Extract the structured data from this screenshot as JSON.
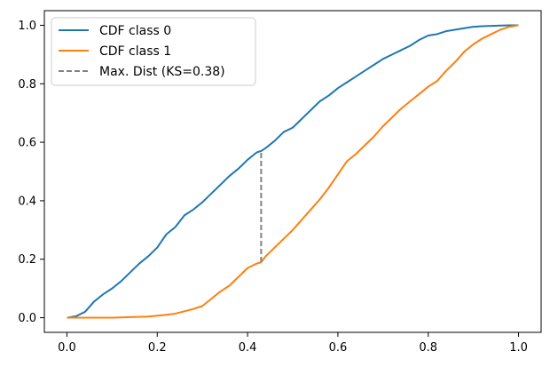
{
  "chart_data": {
    "type": "line",
    "title": "",
    "xlabel": "",
    "ylabel": "",
    "xlim": [
      -0.05,
      1.05
    ],
    "ylim": [
      -0.05,
      1.05
    ],
    "x_ticks": [
      0.0,
      0.2,
      0.4,
      0.6,
      0.8,
      1.0
    ],
    "y_ticks": [
      0.0,
      0.2,
      0.4,
      0.6,
      0.8,
      1.0
    ],
    "x_tick_labels": [
      "0.0",
      "0.2",
      "0.4",
      "0.6",
      "0.8",
      "1.0"
    ],
    "y_tick_labels": [
      "0.0",
      "0.2",
      "0.4",
      "0.6",
      "0.8",
      "1.0"
    ],
    "grid": false,
    "legend_position": "upper-left",
    "series": [
      {
        "name": "CDF class 0",
        "color": "#1f77b4",
        "style": "solid",
        "x": [
          0.0,
          0.02,
          0.04,
          0.06,
          0.08,
          0.1,
          0.12,
          0.14,
          0.16,
          0.18,
          0.2,
          0.22,
          0.24,
          0.26,
          0.28,
          0.3,
          0.32,
          0.34,
          0.36,
          0.38,
          0.4,
          0.42,
          0.43,
          0.44,
          0.46,
          0.48,
          0.5,
          0.52,
          0.54,
          0.56,
          0.58,
          0.6,
          0.62,
          0.64,
          0.66,
          0.68,
          0.7,
          0.72,
          0.74,
          0.76,
          0.78,
          0.8,
          0.82,
          0.84,
          0.86,
          0.88,
          0.9,
          0.92,
          0.94,
          0.96,
          0.98,
          1.0
        ],
        "y": [
          0.0,
          0.005,
          0.02,
          0.055,
          0.08,
          0.1,
          0.125,
          0.155,
          0.185,
          0.21,
          0.24,
          0.285,
          0.31,
          0.35,
          0.37,
          0.395,
          0.425,
          0.455,
          0.485,
          0.51,
          0.54,
          0.565,
          0.57,
          0.58,
          0.605,
          0.635,
          0.65,
          0.68,
          0.71,
          0.74,
          0.76,
          0.785,
          0.805,
          0.825,
          0.845,
          0.865,
          0.885,
          0.9,
          0.915,
          0.93,
          0.95,
          0.965,
          0.97,
          0.98,
          0.985,
          0.99,
          0.995,
          0.997,
          0.998,
          0.999,
          1.0,
          1.0
        ]
      },
      {
        "name": "CDF class 1",
        "color": "#ff7f0e",
        "style": "solid",
        "x": [
          0.0,
          0.04,
          0.08,
          0.1,
          0.14,
          0.18,
          0.2,
          0.22,
          0.24,
          0.26,
          0.28,
          0.3,
          0.32,
          0.34,
          0.36,
          0.38,
          0.4,
          0.42,
          0.43,
          0.44,
          0.46,
          0.48,
          0.5,
          0.52,
          0.54,
          0.56,
          0.58,
          0.6,
          0.62,
          0.64,
          0.66,
          0.68,
          0.7,
          0.72,
          0.74,
          0.76,
          0.78,
          0.8,
          0.82,
          0.84,
          0.86,
          0.88,
          0.9,
          0.92,
          0.94,
          0.96,
          0.98,
          1.0
        ],
        "y": [
          0.0,
          0.0,
          0.0,
          0.0,
          0.002,
          0.004,
          0.007,
          0.01,
          0.014,
          0.022,
          0.03,
          0.04,
          0.065,
          0.09,
          0.11,
          0.14,
          0.17,
          0.185,
          0.19,
          0.21,
          0.24,
          0.27,
          0.3,
          0.335,
          0.37,
          0.405,
          0.445,
          0.49,
          0.535,
          0.56,
          0.59,
          0.62,
          0.655,
          0.685,
          0.715,
          0.74,
          0.765,
          0.79,
          0.81,
          0.845,
          0.875,
          0.91,
          0.935,
          0.955,
          0.97,
          0.985,
          0.995,
          1.0
        ]
      },
      {
        "name": "Max. Dist (KS=0.38)",
        "color": "#808080",
        "style": "dashed",
        "x": [
          0.43,
          0.43
        ],
        "y": [
          0.19,
          0.57
        ]
      }
    ]
  }
}
